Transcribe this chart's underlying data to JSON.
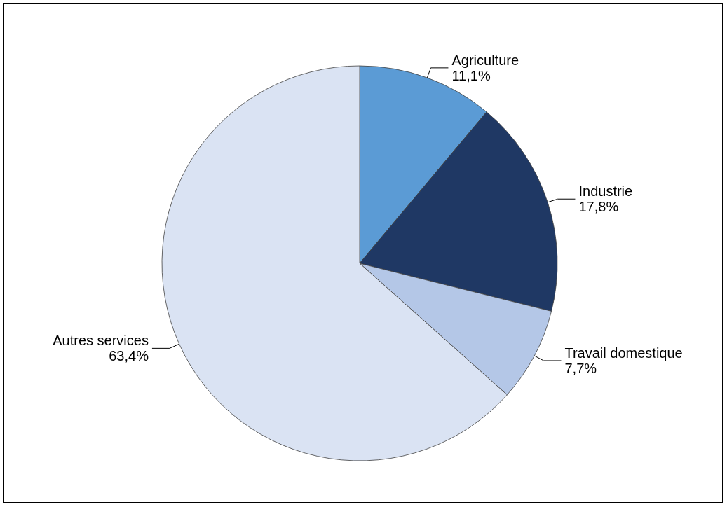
{
  "chart_data": {
    "type": "pie",
    "categories": [
      "Agriculture",
      "Industrie",
      "Travail domestique",
      "Autres services"
    ],
    "values": [
      11.1,
      17.8,
      7.7,
      63.4
    ],
    "colors": [
      "#5b9bd5",
      "#1f3864",
      "#b4c7e7",
      "#dae3f3"
    ],
    "value_labels": [
      "11,1%",
      "17,8%",
      "7,7%",
      "63,4%"
    ],
    "legend": false
  }
}
